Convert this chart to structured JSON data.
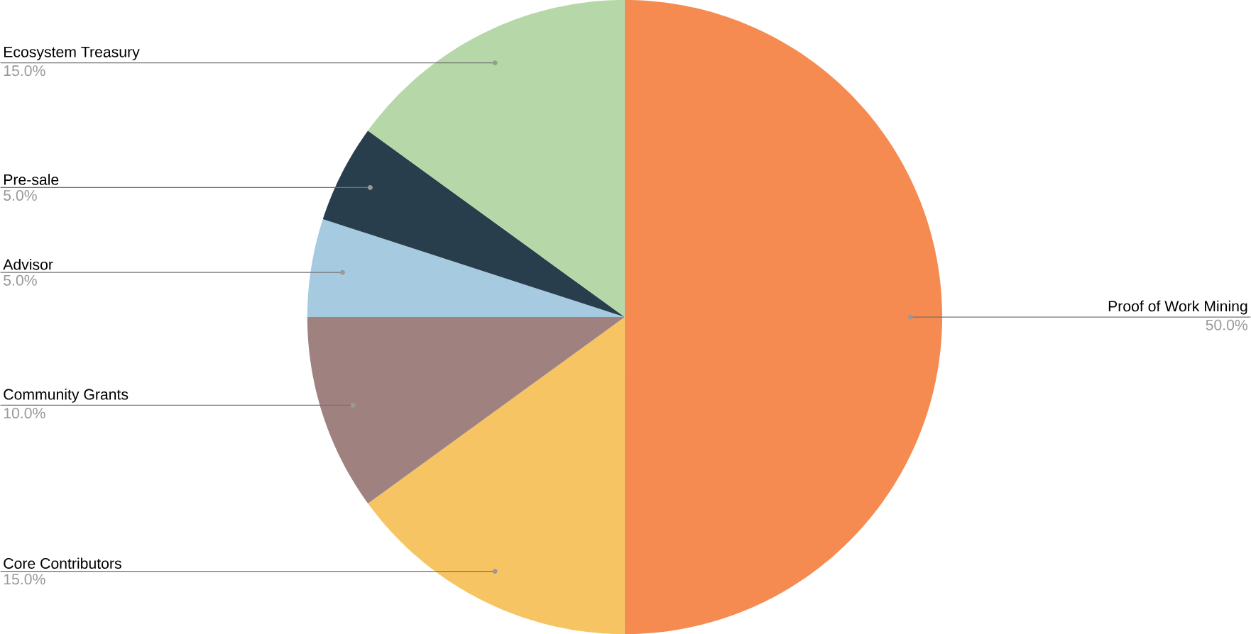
{
  "chart_data": {
    "type": "pie",
    "categories": [
      "Proof of Work Mining",
      "Core Contributors",
      "Community Grants",
      "Advisor",
      "Pre-sale",
      "Ecosystem Treasury"
    ],
    "values": [
      50,
      15,
      10,
      5,
      5,
      15
    ],
    "colors": [
      "#f68b51",
      "#f7c463",
      "#9f8280",
      "#a6cbe0",
      "#283e4d",
      "#b6d7a8"
    ],
    "value_labels": [
      "50.0%",
      "15.0%",
      "10.0%",
      "5.0%",
      "5.0%",
      "15.0%"
    ]
  }
}
